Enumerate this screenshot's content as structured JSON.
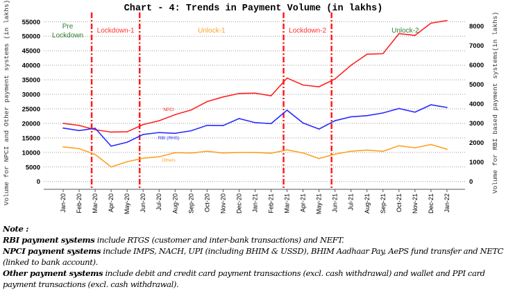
{
  "chart_data": {
    "type": "line",
    "title": "Chart - 4: Trends in Payment Volume (in lakhs)",
    "ylabel": "Volume for NPCI and Other payment systems (in lakhs)",
    "y2label": "Volume for RBI based payment systems(in lakhs)",
    "ylim": [
      0,
      55000
    ],
    "y2lim": [
      0,
      8000
    ],
    "yticks": [
      "0",
      "5000",
      "10000",
      "15000",
      "20000",
      "25000",
      "30000",
      "35000",
      "40000",
      "45000",
      "50000",
      "55000"
    ],
    "y2ticks": [
      "0",
      "1000",
      "2000",
      "3000",
      "4000",
      "5000",
      "6000",
      "7000",
      "8000"
    ],
    "grid": "horizontal dotted",
    "categories": [
      "Jan-20",
      "Feb-20",
      "Mar-20",
      "Apr-20",
      "May-20",
      "Jun-20",
      "Jul-20",
      "Aug-20",
      "Sep-20",
      "Oct-20",
      "Nov-20",
      "Dec-20",
      "Jan-21",
      "Feb-21",
      "Mar-21",
      "Apr-21",
      "May-21",
      "Jun-21",
      "Jul-21",
      "Aug-21",
      "Sep-21",
      "Oct-21",
      "Nov-21",
      "Dec-21",
      "Jan-22"
    ],
    "series": [
      {
        "name": "NPCI",
        "axis": "left",
        "color": "#ff2020",
        "values": [
          20000,
          19300,
          17800,
          17000,
          17100,
          19600,
          20900,
          23000,
          24600,
          27500,
          29100,
          30300,
          30400,
          29500,
          35600,
          33200,
          32600,
          35300,
          40000,
          43800,
          44000,
          50900,
          50300,
          54500,
          55400
        ]
      },
      {
        "name": "RBI (RHS)",
        "axis": "right",
        "color": "#2a2aff",
        "values": [
          2750,
          2620,
          2740,
          1820,
          2020,
          2420,
          2520,
          2480,
          2610,
          2890,
          2880,
          3240,
          3030,
          2980,
          3670,
          3010,
          2700,
          3130,
          3330,
          3390,
          3530,
          3760,
          3570,
          3950,
          3810
        ]
      },
      {
        "name": "Others",
        "axis": "left",
        "color": "#ffa020",
        "values": [
          11900,
          11300,
          9300,
          5000,
          6800,
          8000,
          8500,
          9900,
          9800,
          10400,
          9800,
          10000,
          10000,
          9700,
          10900,
          9800,
          7900,
          9400,
          10400,
          10800,
          10400,
          12300,
          11600,
          12700,
          11100
        ]
      }
    ],
    "phase_markers": [
      "Mar-20",
      "Jun-20",
      "Mar-21",
      "Jun-21"
    ],
    "phases": [
      {
        "label": "Pre Lockdown",
        "line1": "Pre",
        "line2": "Lockdown",
        "color": "#2e7d32"
      },
      {
        "label": "Lockdown-1",
        "color": "#ff3030"
      },
      {
        "label": "Unlock-1",
        "color": "#ffa020"
      },
      {
        "label": "Lockdown-2",
        "color": "#ff3030"
      },
      {
        "label": "Unlock-2",
        "color": "#2e7d32"
      }
    ]
  },
  "notes": {
    "heading": "Note :",
    "rbi_bold": "RBI payment systems",
    "rbi_text": " include RTGS (customer and inter-bank transactions) and NEFT.",
    "npci_bold": "NPCI payment systems",
    "npci_text": " include IMPS, NACH, UPI (including BHIM & USSD), BHIM Aadhaar Pay, AePS fund transfer and NETC (linked to bank account).",
    "other_bold": "Other payment systems",
    "other_text": " include debit and credit card payment transactions (excl. cash withdrawal) and wallet and PPI card payment transactions (excl. cash withdrawal)."
  }
}
